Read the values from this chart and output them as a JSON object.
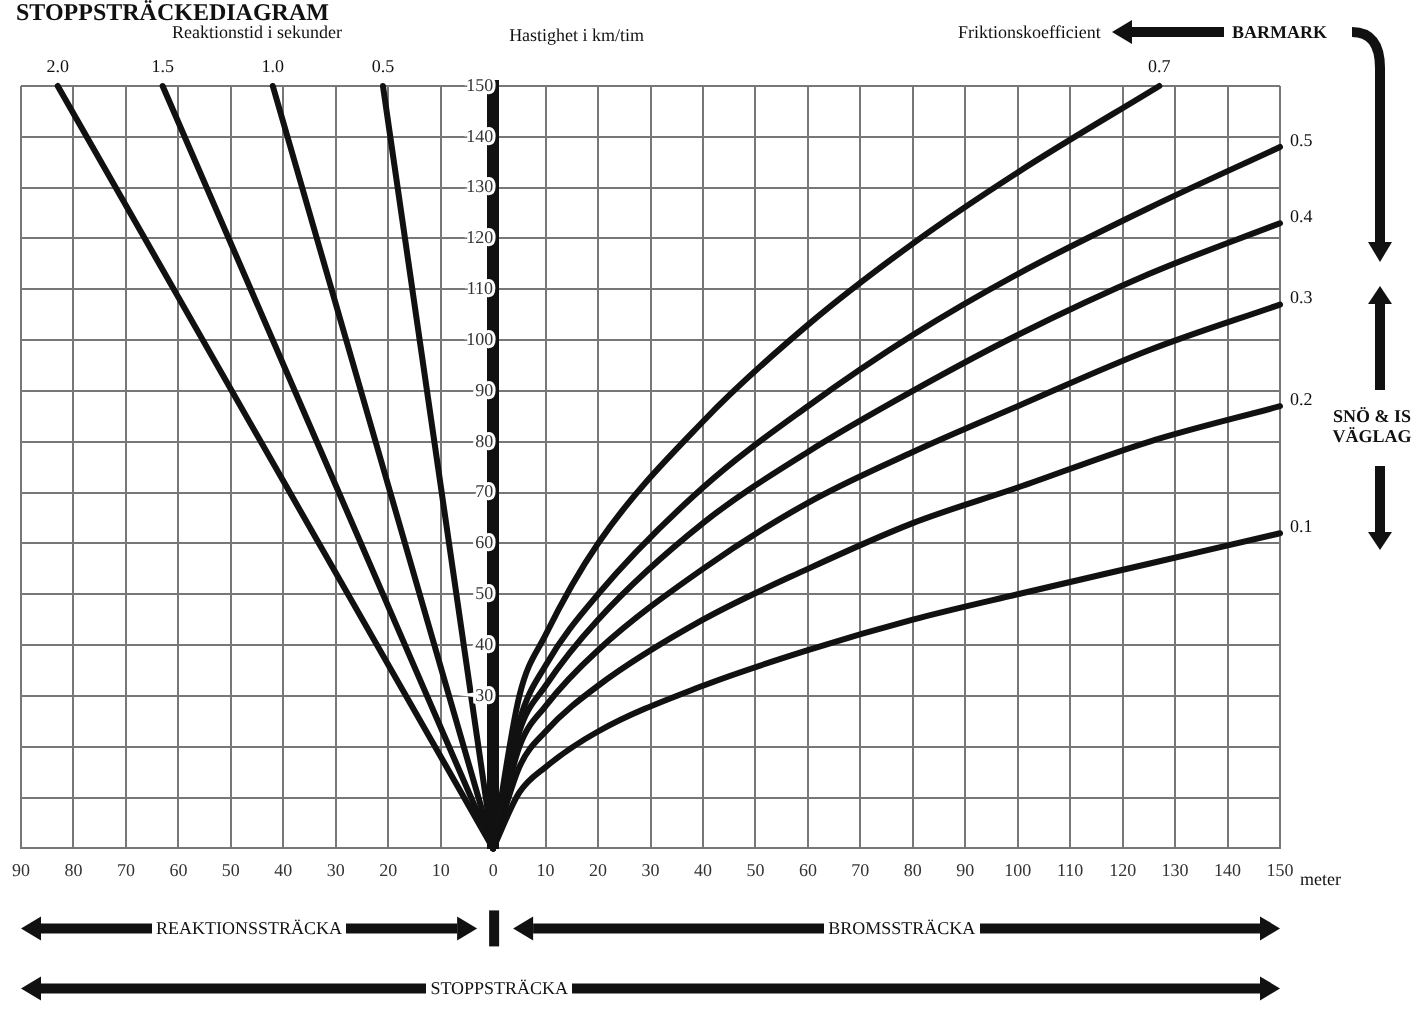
{
  "chart_data": {
    "type": "line",
    "title": "STOPPSTRÄCKEDIAGRAM",
    "ylabel": "Hastighet i km/tim",
    "xlabel": "meter",
    "annotations": [
      "Reaktionstid i sekunder",
      "Friktionskoefficient",
      "BARMARK",
      "SNÖ & IS VÄGLAG",
      "REAKTIONSSTRÄCKA",
      "BROMSSTRÄCKA",
      "STOPPSTRÄCKA"
    ],
    "xlim": [
      -90,
      150
    ],
    "ylim": [
      0,
      150
    ],
    "xticks": [
      {
        "value": -90,
        "label": "90"
      },
      {
        "value": -80,
        "label": "80"
      },
      {
        "value": -70,
        "label": "70"
      },
      {
        "value": -60,
        "label": "60"
      },
      {
        "value": -50,
        "label": "50"
      },
      {
        "value": -40,
        "label": "40"
      },
      {
        "value": -30,
        "label": "30"
      },
      {
        "value": -20,
        "label": "20"
      },
      {
        "value": -10,
        "label": "10"
      },
      0,
      10,
      20,
      30,
      40,
      50,
      60,
      70,
      80,
      90,
      100,
      110,
      120,
      130,
      140,
      150
    ],
    "yticks": [
      {
        "value": 0,
        "label": null
      },
      {
        "value": 10,
        "label": null
      },
      {
        "value": 20,
        "label": null
      },
      30,
      40,
      50,
      60,
      70,
      80,
      90,
      100,
      110,
      120,
      130,
      140,
      150
    ],
    "grid": true,
    "line_style": "solid",
    "series": [
      {
        "name": "2.0",
        "color": "#111111",
        "x": [
          0,
          -83
        ],
        "values": [
          0,
          150
        ]
      },
      {
        "name": "1.5",
        "color": "#111111",
        "x": [
          0,
          -63
        ],
        "values": [
          0,
          150
        ]
      },
      {
        "name": "1.0",
        "color": "#111111",
        "x": [
          0,
          -42
        ],
        "values": [
          0,
          150
        ]
      },
      {
        "name": "0.5",
        "color": "#111111",
        "x": [
          0,
          -21
        ],
        "values": [
          0,
          150
        ]
      },
      {
        "name": "0.7",
        "color": "#111111",
        "x": [
          0,
          5,
          10,
          20,
          40,
          60,
          80,
          100,
          127
        ],
        "values": [
          0,
          30,
          42,
          60,
          84,
          103,
          119,
          133,
          150
        ]
      },
      {
        "name": "0.5",
        "color": "#111111",
        "x": [
          0,
          5,
          10,
          20,
          40,
          60,
          80,
          100,
          125,
          150
        ],
        "values": [
          0,
          25,
          36,
          50,
          71,
          87,
          101,
          113,
          126,
          138
        ]
      },
      {
        "name": "0.4",
        "color": "#111111",
        "x": [
          0,
          5,
          10,
          20,
          40,
          60,
          80,
          100,
          125,
          150
        ],
        "values": [
          0,
          23,
          32,
          45,
          64,
          78,
          90,
          101,
          113,
          123
        ]
      },
      {
        "name": "0.3",
        "color": "#111111",
        "x": [
          0,
          5,
          10,
          20,
          40,
          60,
          80,
          100,
          125,
          150
        ],
        "values": [
          0,
          20,
          28,
          39,
          55,
          68,
          78,
          87,
          98,
          107
        ]
      },
      {
        "name": "0.2",
        "color": "#111111",
        "x": [
          0,
          5,
          10,
          20,
          40,
          60,
          80,
          100,
          125,
          150
        ],
        "values": [
          0,
          16,
          23,
          32,
          45,
          55,
          64,
          71,
          80,
          87
        ]
      },
      {
        "name": "0.1",
        "color": "#111111",
        "x": [
          0,
          5,
          10,
          20,
          40,
          60,
          80,
          100,
          125,
          150
        ],
        "values": [
          0,
          11,
          16,
          23,
          32,
          39,
          45,
          50,
          56,
          62
        ]
      }
    ]
  }
}
